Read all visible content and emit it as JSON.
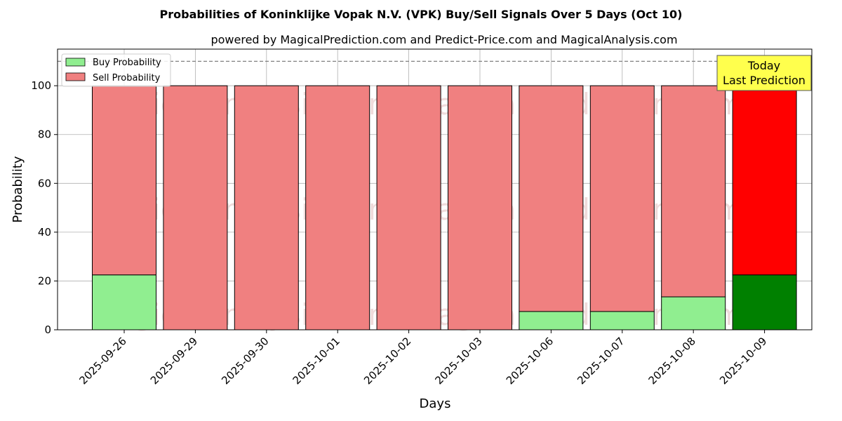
{
  "chart_data": {
    "type": "bar",
    "title": "Probabilities of Koninklijke Vopak N.V. (VPK) Buy/Sell Signals Over 5 Days (Oct 10)",
    "subtitle": "powered by MagicalPrediction.com and Predict-Price.com and MagicalAnalysis.com",
    "xlabel": "Days",
    "ylabel": "Probability",
    "ylim": [
      0,
      115
    ],
    "yticks": [
      0,
      20,
      40,
      60,
      80,
      100
    ],
    "reference_line": 110,
    "grid": true,
    "legend_position": "top-left",
    "categories": [
      "2025-09-26",
      "2025-09-29",
      "2025-09-30",
      "2025-10-01",
      "2025-10-02",
      "2025-10-03",
      "2025-10-06",
      "2025-10-07",
      "2025-10-08",
      "2025-10-09"
    ],
    "series": [
      {
        "name": "Buy Probability",
        "values": [
          22.5,
          0,
          0,
          0,
          0,
          0,
          7.5,
          7.5,
          13.5,
          22.5
        ],
        "color": "#90ee90",
        "highlight_color": "#008000"
      },
      {
        "name": "Sell Probability",
        "values": [
          77.5,
          100,
          100,
          100,
          100,
          100,
          92.5,
          92.5,
          86.5,
          77.5
        ],
        "color": "#f08080",
        "highlight_color": "#ff0000"
      }
    ],
    "highlight_index": 9,
    "annotation": {
      "lines": [
        "Today",
        "Last Prediction"
      ],
      "background": "#ffff4d"
    },
    "watermarks": [
      "MagicalAnalysis.com",
      "MagicalPrediction.com",
      "MagicalAnalysis.com",
      "MagicalPrediction.com",
      "MagicalAnalysis.com",
      "MagicalPrediction.com"
    ]
  }
}
